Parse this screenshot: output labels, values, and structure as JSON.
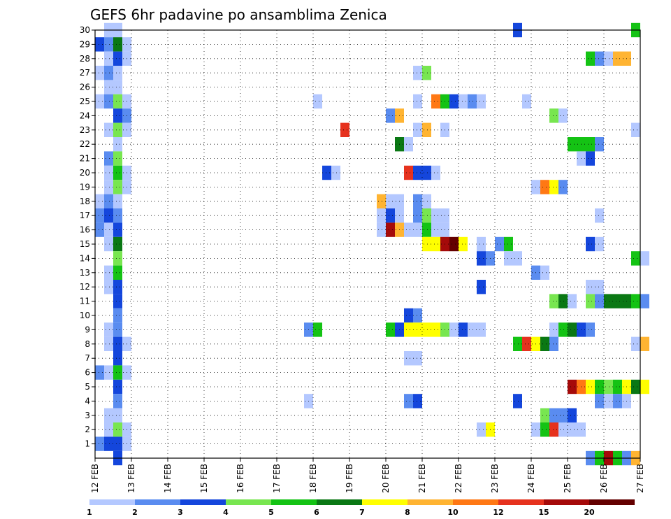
{
  "chart_data": {
    "type": "heatmap",
    "title": "GEFS 6hr padavine po ansamblima Zenica",
    "xlabel": "",
    "ylabel": "",
    "x_ticks": [
      "12 FEB",
      "13 FEB",
      "14 FEB",
      "15 FEB",
      "16 FEB",
      "17 FEB",
      "18 FEB",
      "19 FEB",
      "20 FEB",
      "21 FEB",
      "22 FEB",
      "23 FEB",
      "24 FEB",
      "25 FEB",
      "26 FEB",
      "27 FEB"
    ],
    "y_ticks": [
      "1",
      "2",
      "3",
      "4",
      "5",
      "6",
      "7",
      "8",
      "9",
      "10",
      "11",
      "12",
      "13",
      "14",
      "15",
      "16",
      "17",
      "18",
      "19",
      "20",
      "21",
      "22",
      "23",
      "24",
      "25",
      "26",
      "27",
      "28",
      "29",
      "30"
    ],
    "xlim_days": [
      0,
      15
    ],
    "ylim": [
      0,
      30
    ],
    "step_hours": 6,
    "grid": "dotted",
    "legend_position": "bottom",
    "legend": {
      "labels": [
        "1",
        "2",
        "3",
        "4",
        "5",
        "6",
        "7",
        "8",
        "10",
        "12",
        "15",
        "20"
      ],
      "colors": [
        "#b4c8ff",
        "#5a8cf0",
        "#1446dc",
        "#78e650",
        "#14c314",
        "#0a7814",
        "#ffff00",
        "#ffb432",
        "#ff7814",
        "#e6321e",
        "#a50a0a",
        "#640000"
      ]
    },
    "cells": [
      [
        30,
        0.25,
        1
      ],
      [
        30,
        0.5,
        1
      ],
      [
        30,
        11.5,
        3
      ],
      [
        30,
        14.75,
        5
      ],
      [
        29,
        0,
        3
      ],
      [
        29,
        0.25,
        2
      ],
      [
        29,
        0.5,
        6
      ],
      [
        29,
        0.75,
        1
      ],
      [
        28,
        0.25,
        1
      ],
      [
        28,
        0.5,
        3
      ],
      [
        28,
        0.75,
        1
      ],
      [
        28,
        13.5,
        5
      ],
      [
        28,
        13.75,
        2
      ],
      [
        28,
        14,
        1
      ],
      [
        28,
        14.25,
        8
      ],
      [
        28,
        14.5,
        8
      ],
      [
        27,
        0,
        1
      ],
      [
        27,
        0.25,
        2
      ],
      [
        27,
        0.5,
        1
      ],
      [
        27,
        8.75,
        1
      ],
      [
        27,
        9,
        4
      ],
      [
        26,
        0.25,
        1
      ],
      [
        26,
        0.5,
        1
      ],
      [
        25,
        0,
        1
      ],
      [
        25,
        0.25,
        2
      ],
      [
        25,
        0.5,
        4
      ],
      [
        25,
        0.75,
        1
      ],
      [
        25,
        6,
        1
      ],
      [
        25,
        8.75,
        1
      ],
      [
        25,
        9.25,
        9
      ],
      [
        25,
        9.5,
        5
      ],
      [
        25,
        9.75,
        3
      ],
      [
        25,
        10,
        1
      ],
      [
        25,
        10.25,
        2
      ],
      [
        25,
        10.5,
        1
      ],
      [
        25,
        11.75,
        1
      ],
      [
        24,
        0.5,
        3
      ],
      [
        24,
        0.75,
        2
      ],
      [
        24,
        8,
        2
      ],
      [
        24,
        8.25,
        8
      ],
      [
        24,
        12.5,
        4
      ],
      [
        24,
        12.75,
        1
      ],
      [
        23,
        0.25,
        1
      ],
      [
        23,
        0.5,
        4
      ],
      [
        23,
        0.75,
        1
      ],
      [
        23,
        6.75,
        10
      ],
      [
        23,
        8.75,
        1
      ],
      [
        23,
        9,
        8
      ],
      [
        23,
        9.5,
        1
      ],
      [
        23,
        14.75,
        1
      ],
      [
        22,
        0.5,
        1
      ],
      [
        22,
        8.25,
        6
      ],
      [
        22,
        8.5,
        1
      ],
      [
        22,
        13,
        5
      ],
      [
        22,
        13.25,
        5
      ],
      [
        22,
        13.5,
        5
      ],
      [
        22,
        13.75,
        2
      ],
      [
        21,
        0.25,
        2
      ],
      [
        21,
        0.5,
        4
      ],
      [
        21,
        13.25,
        1
      ],
      [
        21,
        13.5,
        3
      ],
      [
        20,
        0.25,
        1
      ],
      [
        20,
        0.5,
        5
      ],
      [
        20,
        0.75,
        1
      ],
      [
        20,
        6.25,
        3
      ],
      [
        20,
        6.5,
        1
      ],
      [
        20,
        8.5,
        10
      ],
      [
        20,
        8.75,
        3
      ],
      [
        20,
        9,
        3
      ],
      [
        20,
        9.25,
        1
      ],
      [
        19,
        0.25,
        1
      ],
      [
        19,
        0.5,
        4
      ],
      [
        19,
        0.75,
        1
      ],
      [
        19,
        12,
        1
      ],
      [
        19,
        12.25,
        9
      ],
      [
        19,
        12.5,
        7
      ],
      [
        19,
        12.75,
        2
      ],
      [
        18,
        0,
        1
      ],
      [
        18,
        0.25,
        2
      ],
      [
        18,
        0.5,
        1
      ],
      [
        18,
        7.75,
        8
      ],
      [
        18,
        8,
        1
      ],
      [
        18,
        8.25,
        1
      ],
      [
        18,
        8.75,
        2
      ],
      [
        18,
        9,
        1
      ],
      [
        17,
        0,
        2
      ],
      [
        17,
        0.25,
        3
      ],
      [
        17,
        0.5,
        2
      ],
      [
        17,
        7.75,
        1
      ],
      [
        17,
        8,
        3
      ],
      [
        17,
        8.25,
        1
      ],
      [
        17,
        8.75,
        2
      ],
      [
        17,
        9,
        4
      ],
      [
        17,
        9.25,
        1
      ],
      [
        17,
        9.5,
        1
      ],
      [
        17,
        13.75,
        1
      ],
      [
        16,
        0,
        2
      ],
      [
        16,
        0.25,
        1
      ],
      [
        16,
        0.5,
        3
      ],
      [
        16,
        7.75,
        1
      ],
      [
        16,
        8,
        11
      ],
      [
        16,
        8.25,
        8
      ],
      [
        16,
        8.5,
        1
      ],
      [
        16,
        8.75,
        1
      ],
      [
        16,
        9,
        5
      ],
      [
        16,
        9.25,
        1
      ],
      [
        16,
        9.5,
        1
      ],
      [
        15,
        0.25,
        1
      ],
      [
        15,
        0.5,
        6
      ],
      [
        15,
        9,
        7
      ],
      [
        15,
        9.25,
        7
      ],
      [
        15,
        9.5,
        11
      ],
      [
        15,
        9.75,
        12
      ],
      [
        15,
        10,
        7
      ],
      [
        15,
        10.5,
        1
      ],
      [
        15,
        11,
        2
      ],
      [
        15,
        11.25,
        5
      ],
      [
        15,
        13.5,
        3
      ],
      [
        15,
        13.75,
        1
      ],
      [
        14,
        0.5,
        4
      ],
      [
        14,
        10.5,
        3
      ],
      [
        14,
        10.75,
        2
      ],
      [
        14,
        11.25,
        1
      ],
      [
        14,
        11.5,
        1
      ],
      [
        14,
        14.75,
        5
      ],
      [
        14,
        15,
        1
      ],
      [
        13,
        0.25,
        1
      ],
      [
        13,
        0.5,
        5
      ],
      [
        13,
        12,
        2
      ],
      [
        13,
        12.25,
        1
      ],
      [
        12,
        0.25,
        1
      ],
      [
        12,
        0.5,
        3
      ],
      [
        12,
        10.5,
        3
      ],
      [
        12,
        13.5,
        1
      ],
      [
        12,
        13.75,
        1
      ],
      [
        11,
        0.5,
        3
      ],
      [
        11,
        12.5,
        4
      ],
      [
        11,
        12.75,
        6
      ],
      [
        11,
        13,
        1
      ],
      [
        11,
        13.5,
        4
      ],
      [
        11,
        13.75,
        2
      ],
      [
        11,
        14,
        6
      ],
      [
        11,
        14.25,
        6
      ],
      [
        11,
        14.5,
        6
      ],
      [
        11,
        14.75,
        5
      ],
      [
        11,
        15,
        2
      ],
      [
        10,
        0.5,
        2
      ],
      [
        10,
        8.5,
        3
      ],
      [
        10,
        8.75,
        2
      ],
      [
        9,
        0.25,
        1
      ],
      [
        9,
        0.5,
        2
      ],
      [
        9,
        5.75,
        2
      ],
      [
        9,
        6,
        5
      ],
      [
        9,
        8,
        5
      ],
      [
        9,
        8.25,
        3
      ],
      [
        9,
        8.5,
        7
      ],
      [
        9,
        8.75,
        7
      ],
      [
        9,
        9,
        7
      ],
      [
        9,
        9.25,
        7
      ],
      [
        9,
        9.5,
        4
      ],
      [
        9,
        9.75,
        1
      ],
      [
        9,
        10,
        3
      ],
      [
        9,
        10.25,
        1
      ],
      [
        9,
        10.5,
        1
      ],
      [
        9,
        12.5,
        1
      ],
      [
        9,
        12.75,
        5
      ],
      [
        9,
        13,
        6
      ],
      [
        9,
        13.25,
        3
      ],
      [
        9,
        13.5,
        2
      ],
      [
        8,
        0.25,
        1
      ],
      [
        8,
        0.5,
        3
      ],
      [
        8,
        0.75,
        1
      ],
      [
        8,
        11.5,
        5
      ],
      [
        8,
        11.75,
        10
      ],
      [
        8,
        12,
        7
      ],
      [
        8,
        12.25,
        6
      ],
      [
        8,
        12.5,
        2
      ],
      [
        8,
        14.75,
        1
      ],
      [
        8,
        15,
        8
      ],
      [
        7,
        0.5,
        3
      ],
      [
        7,
        8.5,
        1
      ],
      [
        7,
        8.75,
        1
      ],
      [
        6,
        0,
        2
      ],
      [
        6,
        0.25,
        1
      ],
      [
        6,
        0.5,
        5
      ],
      [
        6,
        0.75,
        1
      ],
      [
        5,
        0.5,
        3
      ],
      [
        5,
        13,
        11
      ],
      [
        5,
        13.25,
        9
      ],
      [
        5,
        13.5,
        7
      ],
      [
        5,
        13.75,
        5
      ],
      [
        5,
        14,
        4
      ],
      [
        5,
        14.25,
        5
      ],
      [
        5,
        14.5,
        7
      ],
      [
        5,
        14.75,
        6
      ],
      [
        5,
        15,
        7
      ],
      [
        4,
        0.5,
        2
      ],
      [
        4,
        5.75,
        1
      ],
      [
        4,
        8.5,
        2
      ],
      [
        4,
        8.75,
        3
      ],
      [
        4,
        11.5,
        3
      ],
      [
        4,
        13.75,
        2
      ],
      [
        4,
        14,
        1
      ],
      [
        4,
        14.25,
        2
      ],
      [
        4,
        14.5,
        1
      ],
      [
        3,
        0.25,
        1
      ],
      [
        3,
        0.5,
        1
      ],
      [
        3,
        12.25,
        4
      ],
      [
        3,
        12.5,
        2
      ],
      [
        3,
        12.75,
        2
      ],
      [
        3,
        13,
        3
      ],
      [
        2,
        0.25,
        1
      ],
      [
        2,
        0.5,
        4
      ],
      [
        2,
        0.75,
        1
      ],
      [
        2,
        10.5,
        1
      ],
      [
        2,
        10.75,
        7
      ],
      [
        2,
        12,
        1
      ],
      [
        2,
        12.25,
        5
      ],
      [
        2,
        12.5,
        10
      ],
      [
        2,
        12.75,
        1
      ],
      [
        2,
        13,
        1
      ],
      [
        2,
        13.25,
        1
      ],
      [
        1,
        0,
        2
      ],
      [
        1,
        0.25,
        3
      ],
      [
        1,
        0.5,
        3
      ],
      [
        1,
        0.75,
        1
      ],
      [
        0,
        0.5,
        3
      ],
      [
        0,
        13.5,
        2
      ],
      [
        0,
        13.75,
        5
      ],
      [
        0,
        14,
        11
      ],
      [
        0,
        14.25,
        5
      ],
      [
        0,
        14.5,
        2
      ],
      [
        0,
        14.75,
        8
      ]
    ]
  }
}
